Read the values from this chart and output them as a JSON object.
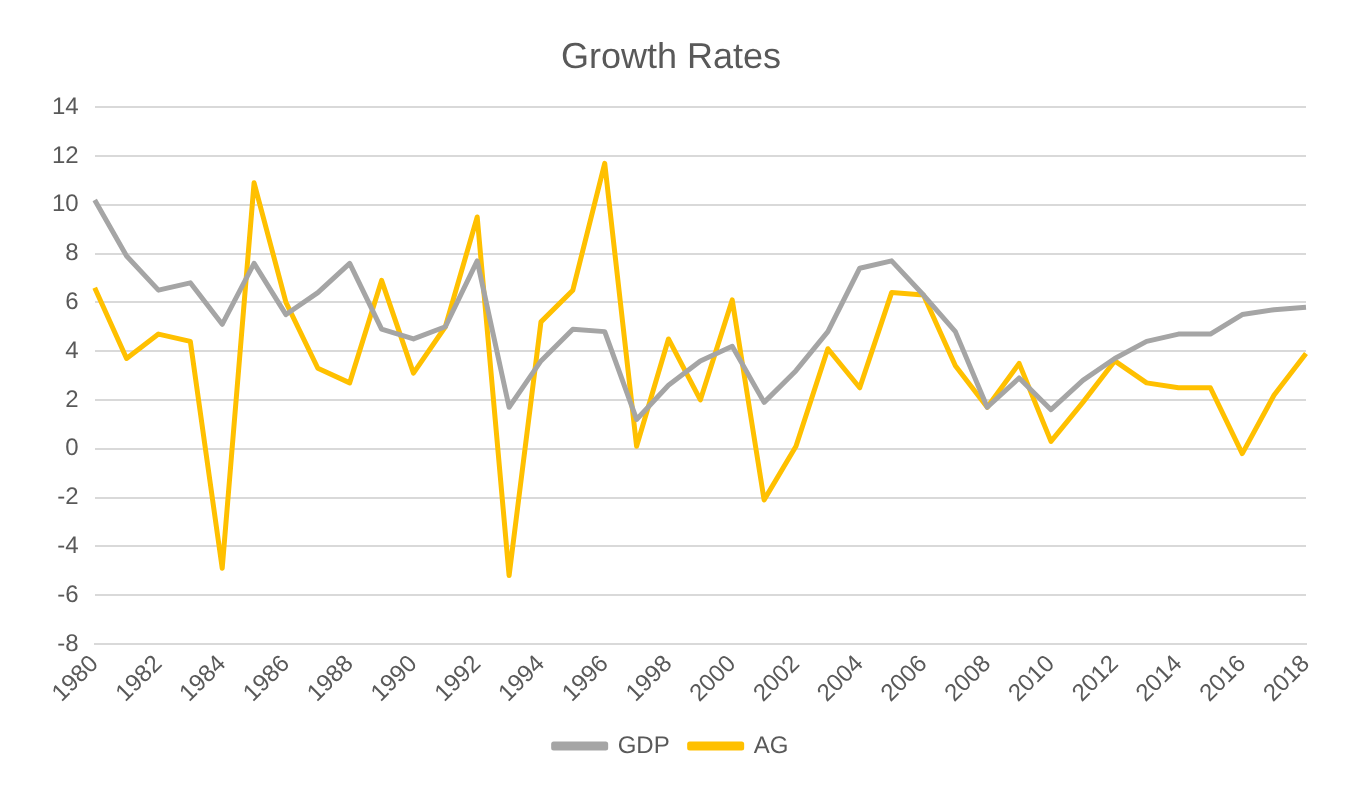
{
  "chart_data": {
    "type": "line",
    "title": "Growth Rates",
    "categories": [
      "1980",
      null,
      "1982",
      null,
      "1984",
      null,
      "1986",
      null,
      "1988",
      null,
      "1990",
      null,
      "1992",
      null,
      "1994",
      null,
      "1996",
      null,
      "1998",
      null,
      "2000",
      null,
      "2002",
      null,
      "2004",
      null,
      "2006",
      null,
      "2008",
      null,
      "2010",
      null,
      "2012",
      null,
      "2014",
      null,
      "2016",
      null,
      "2018"
    ],
    "series": [
      {
        "name": "GDP",
        "color": "#a5a5a5",
        "values": [
          10.2,
          7.9,
          6.5,
          6.8,
          5.1,
          7.6,
          5.5,
          6.4,
          7.6,
          4.9,
          4.5,
          5.0,
          7.7,
          1.7,
          3.6,
          4.9,
          4.8,
          1.2,
          2.6,
          3.6,
          4.2,
          1.9,
          3.2,
          4.8,
          7.4,
          7.7,
          6.3,
          4.8,
          1.7,
          2.9,
          1.6,
          2.8,
          3.7,
          4.4,
          4.7,
          4.7,
          5.5,
          5.7,
          5.8
        ]
      },
      {
        "name": "AG",
        "color": "#ffc000",
        "values": [
          6.6,
          3.7,
          4.7,
          4.4,
          -4.9,
          10.9,
          6.0,
          3.3,
          2.7,
          6.9,
          3.1,
          5.0,
          9.5,
          -5.2,
          5.2,
          6.5,
          11.7,
          0.1,
          4.5,
          2.0,
          6.1,
          -2.1,
          0.1,
          4.1,
          2.5,
          6.4,
          6.3,
          3.4,
          1.7,
          3.5,
          0.3,
          1.9,
          3.6,
          2.7,
          2.5,
          2.5,
          -0.2,
          2.2,
          3.9
        ]
      }
    ],
    "ylim": [
      -8,
      14
    ],
    "yticks": [
      -8,
      -6,
      -4,
      -2,
      0,
      2,
      4,
      6,
      8,
      10,
      12,
      14
    ],
    "grid": "y",
    "legend": "bottom",
    "marker": "none",
    "line_style": "solid"
  }
}
